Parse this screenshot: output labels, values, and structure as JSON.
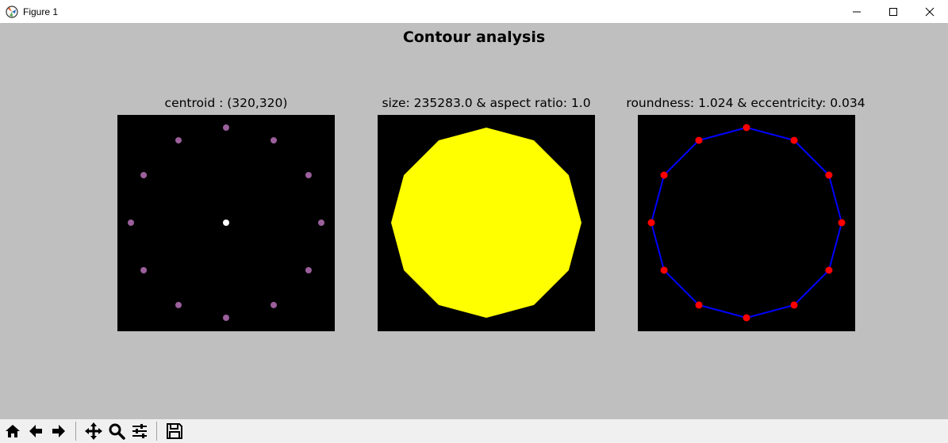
{
  "window": {
    "title": "Figure 1",
    "icon": "matplotlib-icon",
    "controls": [
      "minimize-icon",
      "maximize-icon",
      "close-icon"
    ]
  },
  "figure": {
    "suptitle": "Contour analysis",
    "background": "#bfbfbf"
  },
  "panels": [
    {
      "title": "centroid : (320,320)",
      "content": "contour points around a centroid",
      "point_color": "#9b5f9b",
      "centroid_color": "#ffffff"
    },
    {
      "title": "size: 235283.0 & aspect ratio: 1.0",
      "content": "filled polygon",
      "fill_color": "#ffff00"
    },
    {
      "title": "roundness: 1.024 & eccentricity: 0.034",
      "content": "polygon outline with vertices",
      "line_color": "#0000ff",
      "vertex_color": "#ff0000"
    }
  ],
  "toolbar": {
    "buttons": [
      "home-icon",
      "back-icon",
      "forward-icon",
      "pan-icon",
      "zoom-icon",
      "configure-subplots-icon",
      "save-icon"
    ]
  }
}
